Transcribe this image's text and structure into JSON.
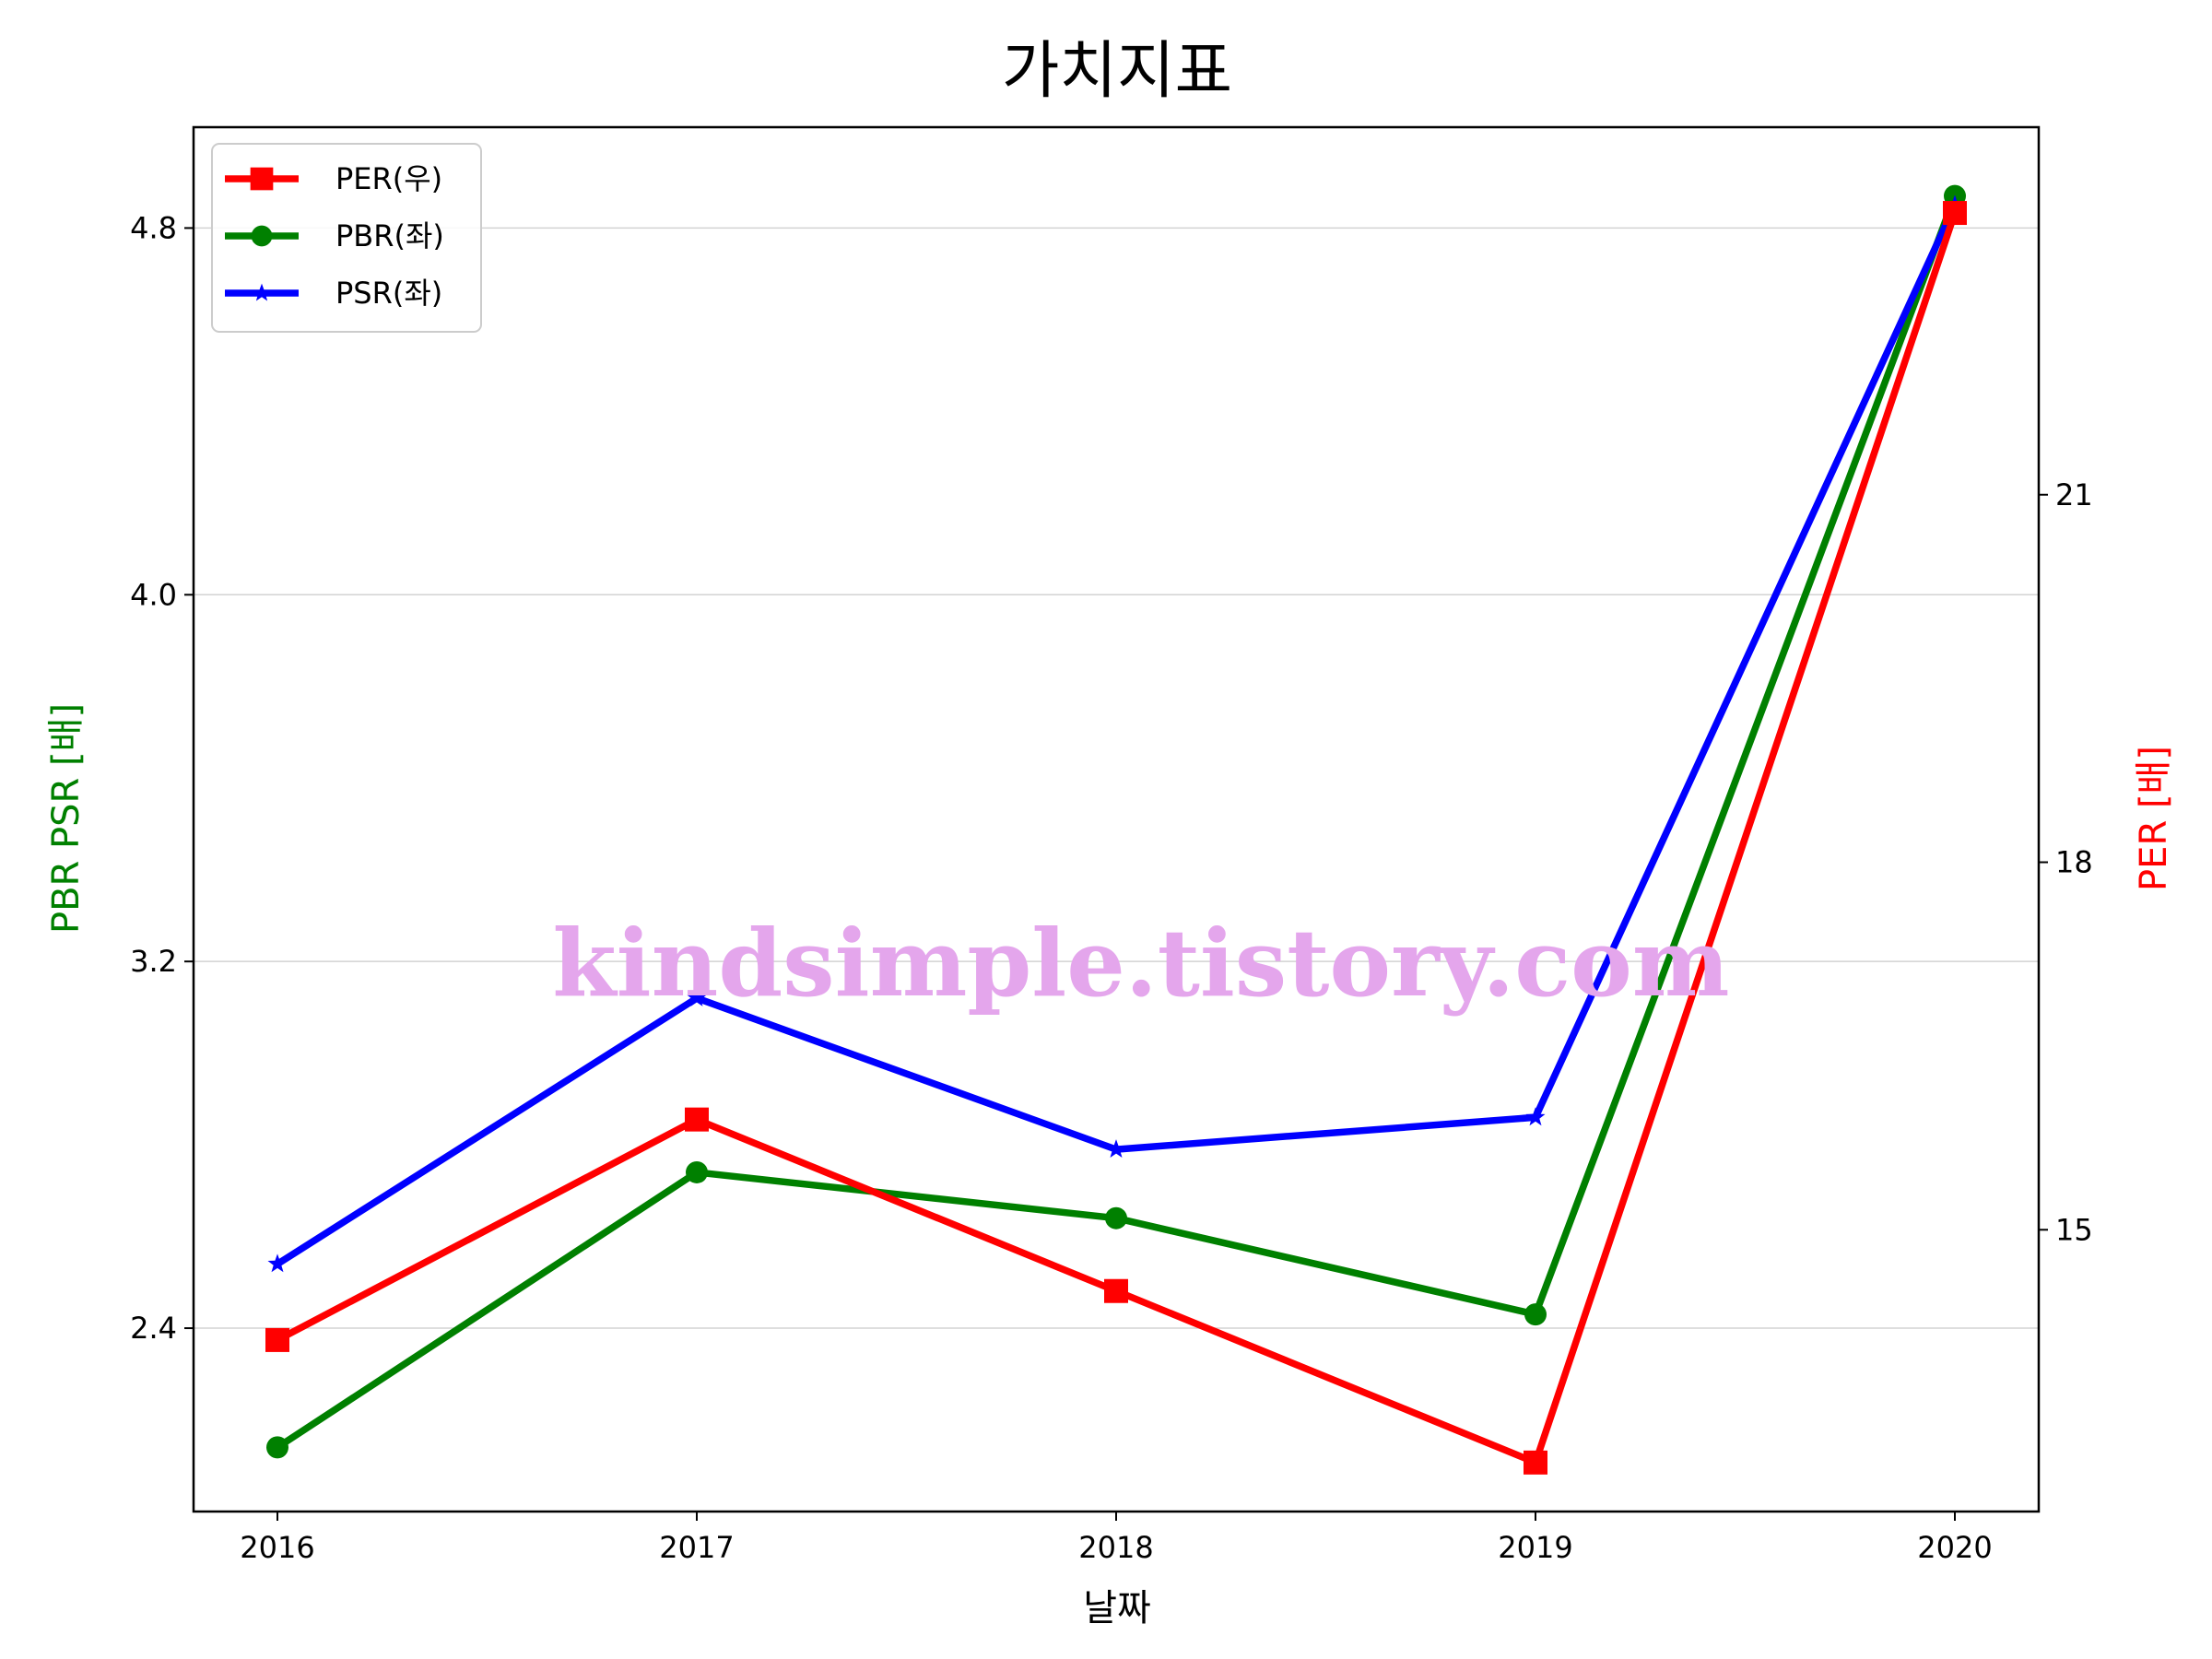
{
  "chart_data": {
    "type": "line",
    "title": "가치지표",
    "xlabel": "날짜",
    "ylabel_left": "PBR PSR [배]",
    "ylabel_right": "PER [배]",
    "x": [
      "2016",
      "2017",
      "2018",
      "2019",
      "2020"
    ],
    "left_axis": {
      "range": [
        2.0,
        5.02
      ],
      "ticks": [
        "2.4",
        "3.2",
        "4.0",
        "4.8"
      ],
      "color": "#008000"
    },
    "right_axis": {
      "range": [
        12.7,
        24.0
      ],
      "ticks": [
        "15",
        "18",
        "21"
      ],
      "color": "#ff0000"
    },
    "grid": "horizontal (left axis)",
    "legend_position": "top-left",
    "series": [
      {
        "name": "PER(우)",
        "axis": "right",
        "color": "#ff0000",
        "marker": "square",
        "values": [
          14.1,
          15.9,
          14.5,
          13.1,
          23.3
        ]
      },
      {
        "name": "PBR(좌)",
        "axis": "left",
        "color": "#008000",
        "marker": "circle",
        "values": [
          2.14,
          2.74,
          2.64,
          2.43,
          4.87
        ]
      },
      {
        "name": "PSR(좌)",
        "axis": "left",
        "color": "#0000ff",
        "marker": "star",
        "values": [
          2.54,
          3.12,
          2.79,
          2.86,
          4.85
        ]
      }
    ],
    "watermark": "kindsimple.tistory.com"
  }
}
